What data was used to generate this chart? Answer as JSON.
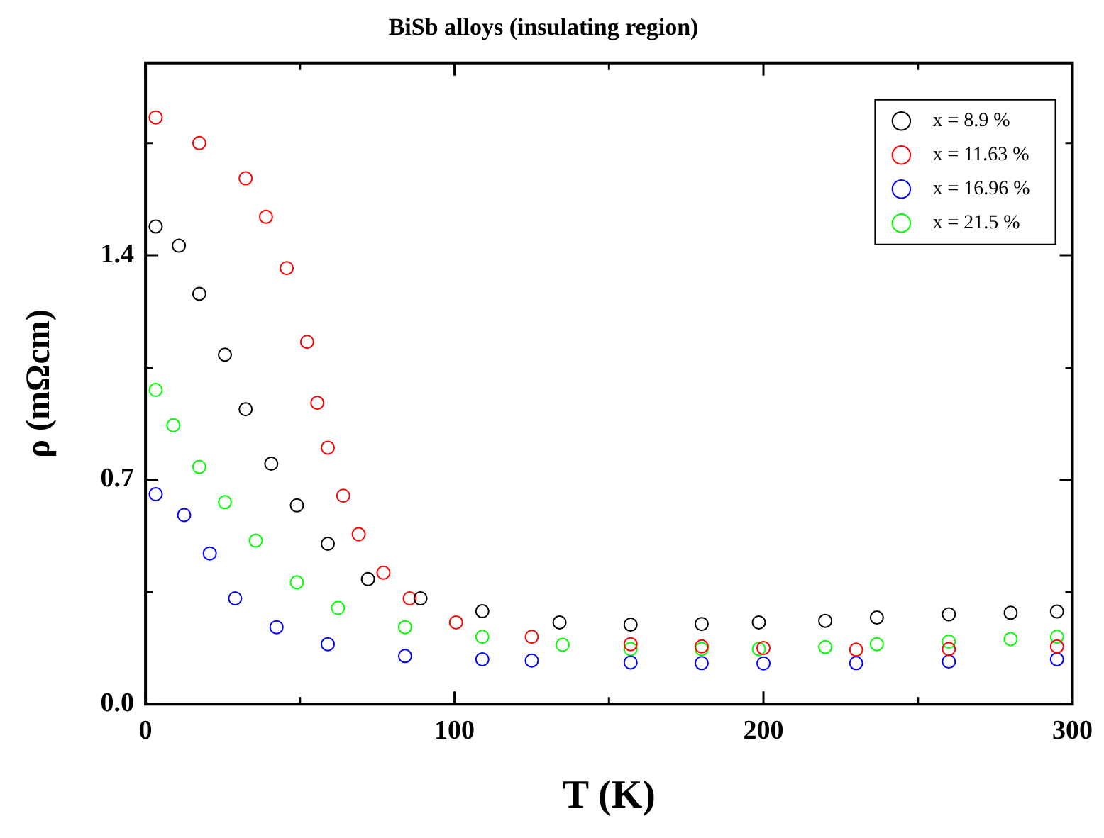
{
  "chart_data": {
    "type": "scatter",
    "title": "BiSb alloys (insulating region)",
    "xlabel": "T (K)",
    "ylabel": "ρ (mΩcm)",
    "xlim": [
      0,
      300
    ],
    "xticks": [
      0,
      {
        "value": 50,
        "label": null
      },
      100,
      {
        "value": 150,
        "label": null
      },
      200,
      {
        "value": 250,
        "label": null
      },
      300
    ],
    "ylim": [
      0,
      2.0
    ],
    "yticks": [
      {
        "value": 0,
        "label": "0.0"
      },
      {
        "value": 0.35,
        "label": null
      },
      0.7,
      {
        "value": 1.05,
        "label": null
      },
      1.4,
      {
        "value": 1.75,
        "label": null
      }
    ],
    "marker": "circle",
    "legend": "top right",
    "grid": false,
    "series": [
      {
        "name": "x = 8.9 %",
        "color": "#000000",
        "x": [
          3.3,
          10.8,
          17.4,
          25.7,
          32.4,
          40.7,
          49,
          59,
          72,
          89,
          109,
          134,
          157,
          180,
          198.5,
          220,
          236.7,
          260,
          280,
          295
        ],
        "values": [
          1.49,
          1.43,
          1.28,
          1.09,
          0.92,
          0.75,
          0.62,
          0.5,
          0.39,
          0.33,
          0.29,
          0.255,
          0.248,
          0.25,
          0.255,
          0.26,
          0.27,
          0.28,
          0.285,
          0.289
        ]
      },
      {
        "name": "x = 11.63 %",
        "color": "#ff0000",
        "x": [
          3.3,
          17.4,
          32.4,
          39,
          45.7,
          52.3,
          55.6,
          59,
          64,
          69,
          77,
          85.5,
          100.5,
          125,
          157,
          180,
          200,
          230,
          260,
          295
        ],
        "values": [
          1.83,
          1.75,
          1.64,
          1.52,
          1.36,
          1.13,
          0.94,
          0.8,
          0.65,
          0.53,
          0.41,
          0.33,
          0.255,
          0.21,
          0.187,
          0.18,
          0.175,
          0.17,
          0.172,
          0.18
        ]
      },
      {
        "name": "x = 16.96 %",
        "color": "#0000ff",
        "x": [
          3.3,
          12.5,
          20.8,
          29,
          42.4,
          59,
          84,
          109,
          125,
          157,
          180,
          200,
          230,
          260,
          295
        ],
        "values": [
          0.655,
          0.59,
          0.47,
          0.33,
          0.24,
          0.187,
          0.15,
          0.14,
          0.136,
          0.13,
          0.128,
          0.127,
          0.128,
          0.133,
          0.14
        ]
      },
      {
        "name": "x = 21.5 %",
        "color": "#00ff00",
        "x": [
          3.3,
          9,
          17.4,
          25.7,
          35.7,
          49,
          62.3,
          84,
          109,
          135,
          157,
          180,
          198.5,
          220,
          236.7,
          260,
          280,
          295
        ],
        "values": [
          0.98,
          0.87,
          0.74,
          0.63,
          0.51,
          0.38,
          0.3,
          0.24,
          0.21,
          0.185,
          0.172,
          0.172,
          0.172,
          0.178,
          0.187,
          0.195,
          0.203,
          0.21
        ]
      }
    ]
  }
}
